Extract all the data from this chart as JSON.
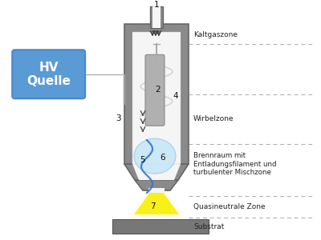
{
  "bg_color": "#ffffff",
  "fig_width": 4.0,
  "fig_height": 3.0,
  "dpi": 100,
  "labels": {
    "kaltgaszone": "Kaltgaszone",
    "wirbelzone": "Wirbelzone",
    "brennraum": "Brennraum mit\nEntladungsfilament und\nturbulenter Mischzone",
    "quasineutrale": "Quasineutrale Zone",
    "substrat": "Substrat",
    "hv": "HV\nQuelle"
  },
  "colors": {
    "outer_body": "#8a8a8a",
    "inner_white": "#f5f5f5",
    "electrode": "#aaaaaa",
    "hv_box_face": "#5b9bd5",
    "hv_box_edge": "#4a86c8",
    "substrat_fill": "#777777",
    "plasma_yellow": "#f8f000",
    "plasma_yellow_outer": "#fffccc",
    "plasma_blue_fill": "#c8e6f5",
    "plasma_blue_edge": "#99ccee",
    "filament_blue": "#3377cc",
    "label_color": "#222222",
    "dashed_line": "#aaaaaa",
    "arrow_color": "#444444",
    "swirl_color": "#cccccc",
    "wire_color": "#aaaaaa"
  }
}
